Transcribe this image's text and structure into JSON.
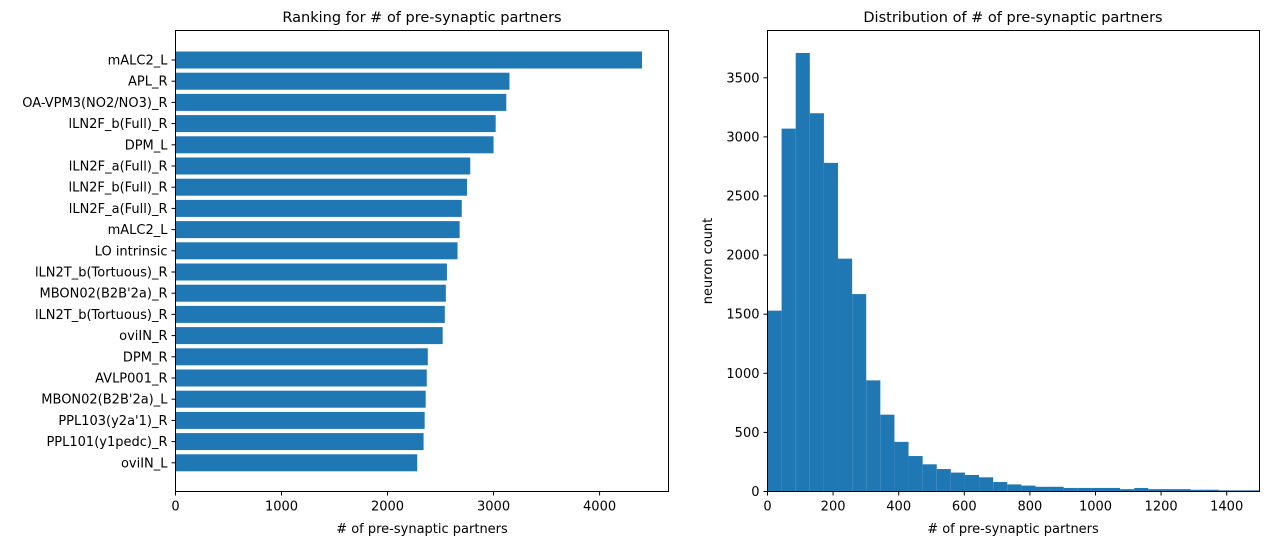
{
  "chart_data": [
    {
      "type": "bar",
      "orientation": "horizontal",
      "title": "Ranking for # of pre-synaptic partners",
      "xlabel": "# of pre-synaptic partners",
      "ylabel": "",
      "xlim": [
        0,
        4650
      ],
      "xticks": [
        0,
        1000,
        2000,
        3000,
        4000
      ],
      "color": "#1f77b4",
      "grid": false,
      "categories": [
        "mALC2_L",
        "APL_R",
        "OA-VPM3(NO2/NO3)_R",
        "lLN2F_b(Full)_R",
        "DPM_L",
        "lLN2F_a(Full)_R",
        "lLN2F_b(Full)_R",
        "lLN2F_a(Full)_R",
        "mALC2_L",
        "LO intrinsic",
        "lLN2T_b(Tortuous)_R",
        "MBON02(B2B'2a)_R",
        "lLN2T_b(Tortuous)_R",
        "oviIN_R",
        "DPM_R",
        "AVLP001_R",
        "MBON02(B2B'2a)_L",
        "PPL103(y2a'1)_R",
        "PPL101(y1pedc)_R",
        "oviIN_L"
      ],
      "values": [
        4400,
        3150,
        3120,
        3020,
        3000,
        2780,
        2750,
        2700,
        2680,
        2660,
        2560,
        2550,
        2540,
        2520,
        2380,
        2370,
        2360,
        2350,
        2340,
        2280
      ]
    },
    {
      "type": "bar",
      "subtype": "histogram",
      "title": "Distribution of # of pre-synaptic partners",
      "xlabel": "# of pre-synaptic partners",
      "ylabel": "neuron count",
      "xlim": [
        0,
        1500
      ],
      "ylim": [
        0,
        3900
      ],
      "xticks": [
        0,
        200,
        400,
        600,
        800,
        1000,
        1200,
        1400
      ],
      "yticks": [
        0,
        500,
        1000,
        1500,
        2000,
        2500,
        3000,
        3500
      ],
      "color": "#1f77b4",
      "grid": false,
      "bin_width": 43,
      "bin_starts": [
        0,
        43,
        86,
        129,
        172,
        215,
        258,
        301,
        344,
        387,
        430,
        473,
        516,
        559,
        602,
        645,
        688,
        731,
        774,
        817,
        860,
        903,
        946,
        989,
        1032,
        1075,
        1118,
        1161,
        1204,
        1247,
        1290,
        1333,
        1376,
        1419,
        1462
      ],
      "values": [
        1530,
        3070,
        3710,
        3200,
        2780,
        1970,
        1670,
        940,
        650,
        420,
        300,
        230,
        190,
        160,
        140,
        120,
        80,
        60,
        50,
        40,
        40,
        30,
        30,
        30,
        30,
        20,
        30,
        20,
        20,
        20,
        15,
        15,
        10,
        10,
        10
      ]
    }
  ]
}
